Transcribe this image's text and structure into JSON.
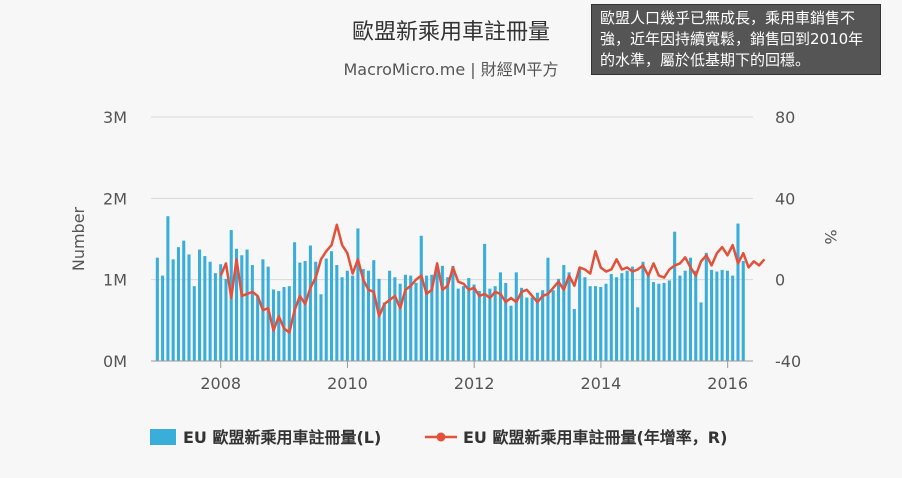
{
  "chart_data": {
    "type": "bar",
    "title": "歐盟新乘用車註冊量",
    "subtitle": "MacroMicro.me | 財經M平方",
    "annotation": "歐盟人口幾乎已無成長，乘用車銷售不強，近年因持續寬鬆，銷售回到2010年的水準，屬於低基期下的回穩。",
    "ylabel_left": "Number",
    "ylabel_right": "%",
    "y_left_ticks": [
      "0M",
      "1M",
      "2M",
      "3M"
    ],
    "y_right_ticks": [
      "-40",
      "0",
      "40",
      "80"
    ],
    "ylim_left": [
      0,
      3000000
    ],
    "ylim_right": [
      -40,
      80
    ],
    "x_ticks": [
      "2008",
      "2010",
      "2012",
      "2014",
      "2016"
    ],
    "xlim": [
      2006.9,
      2016.4
    ],
    "grid": true,
    "legend_position": "bottom",
    "colors": {
      "bar": "#3aaedb",
      "line": "#e4513a"
    },
    "series": [
      {
        "name": "EU 歐盟新乘用車註冊量(L)",
        "kind": "bar",
        "x_start": 2007.0,
        "x_step": 0.0833,
        "values": [
          1270000,
          1050000,
          1780000,
          1250000,
          1400000,
          1480000,
          1310000,
          920000,
          1370000,
          1290000,
          1220000,
          1080000,
          1190000,
          1010000,
          1610000,
          1380000,
          1300000,
          1370000,
          1180000,
          800000,
          1250000,
          1160000,
          880000,
          860000,
          910000,
          920000,
          1460000,
          1210000,
          1230000,
          1420000,
          1220000,
          820000,
          1260000,
          1350000,
          1180000,
          1030000,
          1110000,
          1050000,
          1630000,
          1130000,
          1110000,
          1240000,
          1010000,
          720000,
          1110000,
          1030000,
          950000,
          1060000,
          1050000,
          960000,
          1540000,
          1050000,
          1060000,
          1150000,
          1170000,
          1030000,
          1170000,
          890000,
          920000,
          1020000,
          940000,
          860000,
          1440000,
          890000,
          920000,
          1090000,
          960000,
          680000,
          1090000,
          900000,
          780000,
          780000,
          840000,
          870000,
          1270000,
          870000,
          1010000,
          1180000,
          1090000,
          640000,
          1150000,
          1030000,
          920000,
          920000,
          910000,
          950000,
          1070000,
          1030000,
          1080000,
          1110000,
          1160000,
          660000,
          1220000,
          1080000,
          970000,
          950000,
          960000,
          990000,
          1590000,
          1050000,
          1110000,
          1270000,
          1110000,
          720000,
          1330000,
          1120000,
          1100000,
          1120000,
          1110000,
          1050000,
          1690000,
          1230000
        ]
      },
      {
        "name": "EU 歐盟新乘用車註冊量(年增率，R)",
        "kind": "line",
        "x_start": 2008.0,
        "x_step": 0.0833,
        "values": [
          2,
          8,
          -9,
          10,
          -8,
          -7,
          -6,
          -8,
          -15,
          -14,
          -25,
          -18,
          -24,
          -26,
          -15,
          -8,
          -12,
          -4,
          1,
          10,
          14,
          17,
          27,
          17,
          13,
          3,
          10,
          0,
          -5,
          -6,
          -18,
          -12,
          -10,
          -8,
          -14,
          -5,
          -3,
          0,
          2,
          -7,
          -5,
          8,
          -5,
          -3,
          6,
          -1,
          -2,
          -5,
          -4,
          -8,
          -7,
          -9,
          -6,
          -7,
          -11,
          -9,
          -11,
          -6,
          -5,
          -8,
          -11,
          -8,
          -7,
          -4,
          -1,
          -5,
          2,
          -3,
          6,
          5,
          3,
          14,
          6,
          4,
          5,
          10,
          5,
          6,
          4,
          5,
          7,
          2,
          8,
          2,
          1,
          5,
          7,
          8,
          11,
          6,
          2,
          9,
          12,
          7,
          13,
          16,
          12,
          17,
          8,
          13,
          6,
          9,
          7,
          10
        ]
      }
    ]
  }
}
